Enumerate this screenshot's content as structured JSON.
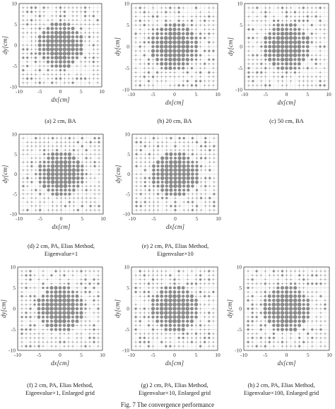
{
  "figure_caption": "Fig. 7    The convergence performance",
  "chart_data": [
    {
      "id": "a",
      "type": "scatter",
      "caption_lines": [
        "(a) 2 cm, BA"
      ],
      "xlabel": "dx[cm]",
      "ylabel": "dy[cm]",
      "xlim": [
        -10,
        10
      ],
      "ylim": [
        -10,
        10
      ],
      "xticks": [
        -10,
        -5,
        0,
        5,
        10
      ],
      "yticks": [
        -10,
        -5,
        0,
        5,
        10
      ],
      "grid": true,
      "grid_step": 1,
      "seed": 11
    },
    {
      "id": "b",
      "type": "scatter",
      "caption_lines": [
        "(b) 20 cm, BA"
      ],
      "xlabel": "dx[cm]",
      "ylabel": "dy[cm]",
      "xlim": [
        -10,
        10
      ],
      "ylim": [
        -10,
        10
      ],
      "xticks": [
        -10,
        -5,
        0,
        5,
        10
      ],
      "yticks": [
        -10,
        -5,
        0,
        5,
        10
      ],
      "grid": true,
      "grid_step": 1,
      "seed": 23
    },
    {
      "id": "c",
      "type": "scatter",
      "caption_lines": [
        "(c) 50 cm, BA"
      ],
      "xlabel": "dx[cm]",
      "ylabel": "dy[cm]",
      "xlim": [
        -10,
        10
      ],
      "ylim": [
        -10,
        10
      ],
      "xticks": [
        -10,
        -5,
        0,
        5,
        10
      ],
      "yticks": [
        -10,
        -5,
        0,
        5,
        10
      ],
      "grid": true,
      "grid_step": 1,
      "seed": 37
    },
    {
      "id": "d",
      "type": "scatter",
      "caption_lines": [
        "(d) 2 cm, PA, Elias Method,",
        "Eigenvalue×1"
      ],
      "xlabel": "dx[cm]",
      "ylabel": "dy[cm]",
      "xlim": [
        -10,
        10
      ],
      "ylim": [
        -10,
        10
      ],
      "xticks": [
        -10,
        -5,
        0,
        5,
        10
      ],
      "yticks": [
        -10,
        -5,
        0,
        5,
        10
      ],
      "grid": true,
      "grid_step": 1,
      "seed": 41
    },
    {
      "id": "e",
      "type": "scatter",
      "caption_lines": [
        "(e) 2 cm, PA, Elias Method,",
        "Eigenvalue×10"
      ],
      "xlabel": "dx[cm]",
      "ylabel": "dy[cm]",
      "xlim": [
        -10,
        10
      ],
      "ylim": [
        -10,
        10
      ],
      "xticks": [
        -10,
        -5,
        0,
        5,
        10
      ],
      "yticks": [
        -10,
        -5,
        0,
        5,
        10
      ],
      "grid": true,
      "grid_step": 1,
      "seed": 53
    },
    {
      "id": "f",
      "type": "scatter",
      "caption_lines": [
        "(f) 2 cm, PA, Elias Method,",
        "Eigenvalue×1, Enlarged grid"
      ],
      "xlabel": "dx[cm]",
      "ylabel": "dy[cm]",
      "xlim": [
        -10,
        10
      ],
      "ylim": [
        -10,
        10
      ],
      "xticks": [
        -10,
        -5,
        0,
        5,
        10
      ],
      "yticks": [
        -10,
        -5,
        0,
        5,
        10
      ],
      "grid": true,
      "grid_step": 1,
      "seed": 67
    },
    {
      "id": "g",
      "type": "scatter",
      "caption_lines": [
        "(g) 2 cm, PA, Elias Method,",
        "Eigenvalue×10, Enlarged grid"
      ],
      "xlabel": "dx[cm]",
      "ylabel": "dy[cm]",
      "xlim": [
        -10,
        10
      ],
      "ylim": [
        -10,
        10
      ],
      "xticks": [
        -10,
        -5,
        0,
        5,
        10
      ],
      "yticks": [
        -10,
        -5,
        0,
        5,
        10
      ],
      "grid": true,
      "grid_step": 1,
      "seed": 79
    },
    {
      "id": "h",
      "type": "scatter",
      "caption_lines": [
        "(h) 2 cm, PA, Elias Method,",
        "Eigenvalue×100, Enlarged grid"
      ],
      "xlabel": "dx[cm]",
      "ylabel": "dy[cm]",
      "xlim": [
        -10,
        10
      ],
      "ylim": [
        -10,
        10
      ],
      "xticks": [
        -10,
        -5,
        0,
        5,
        10
      ],
      "yticks": [
        -10,
        -5,
        0,
        5,
        10
      ],
      "grid": true,
      "grid_step": 1,
      "seed": 97
    }
  ],
  "colors": {
    "marker": "#8c8c8c",
    "grid": "#c8c8c8",
    "axis": "#444444",
    "text": "#222222"
  }
}
